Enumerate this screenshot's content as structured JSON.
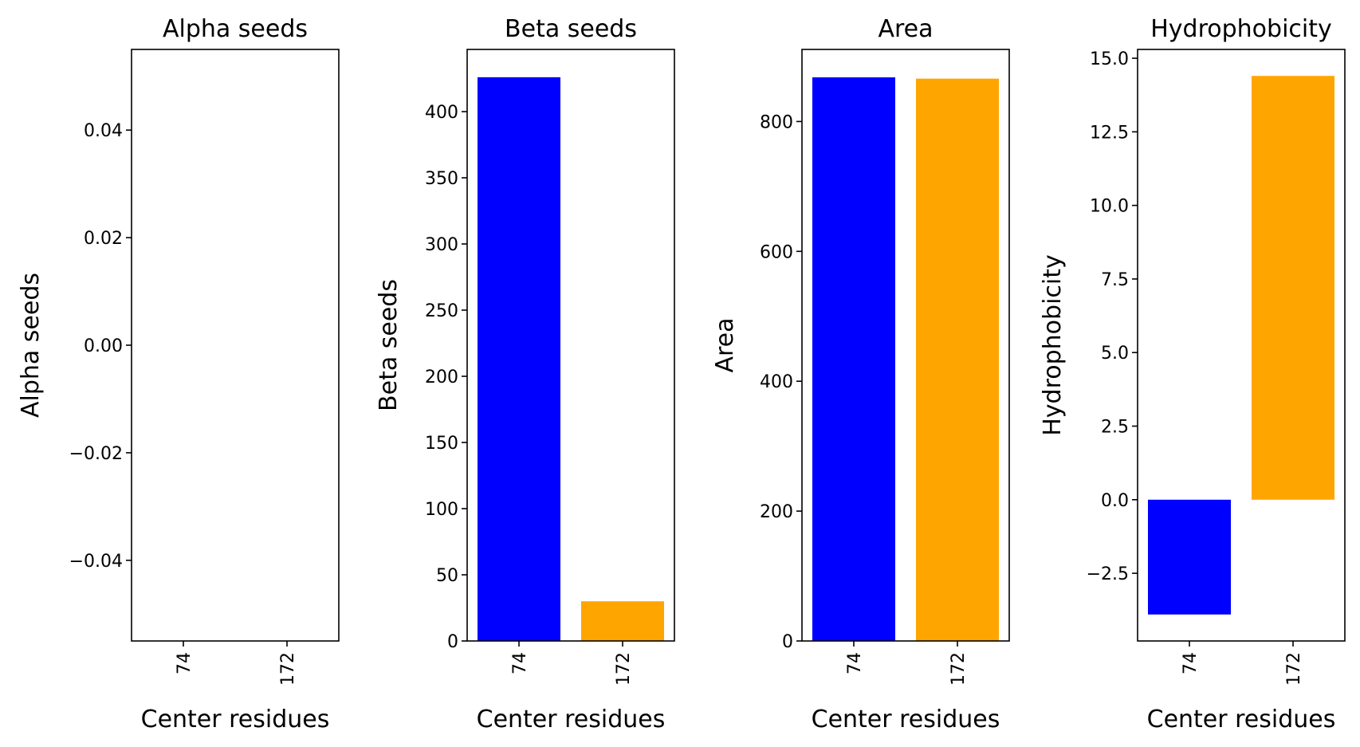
{
  "colors": {
    "series_74": "#0000ff",
    "series_172": "#ffa500"
  },
  "chart_data": [
    {
      "type": "bar",
      "title": "Alpha seeds",
      "xlabel": "Center residues",
      "ylabel": "Alpha seeds",
      "categories": [
        "74",
        "172"
      ],
      "values": [
        0,
        0
      ],
      "bar_colors": [
        "#0000ff",
        "#ffa500"
      ],
      "ylim": [
        -0.055,
        0.055
      ],
      "yticks": [
        -0.04,
        -0.02,
        0.0,
        0.02,
        0.04
      ],
      "ytick_labels": [
        "−0.04",
        "−0.02",
        "0.00",
        "0.02",
        "0.04"
      ]
    },
    {
      "type": "bar",
      "title": "Beta seeds",
      "xlabel": "Center residues",
      "ylabel": "Beta seeds",
      "categories": [
        "74",
        "172"
      ],
      "values": [
        426,
        30
      ],
      "bar_colors": [
        "#0000ff",
        "#ffa500"
      ],
      "ylim": [
        0,
        447
      ],
      "yticks": [
        0,
        50,
        100,
        150,
        200,
        250,
        300,
        350,
        400
      ],
      "ytick_labels": [
        "0",
        "50",
        "100",
        "150",
        "200",
        "250",
        "300",
        "350",
        "400"
      ]
    },
    {
      "type": "bar",
      "title": "Area",
      "xlabel": "Center residues",
      "ylabel": "Area",
      "categories": [
        "74",
        "172"
      ],
      "values": [
        868,
        866
      ],
      "bar_colors": [
        "#0000ff",
        "#ffa500"
      ],
      "ylim": [
        0,
        911
      ],
      "yticks": [
        0,
        200,
        400,
        600,
        800
      ],
      "ytick_labels": [
        "0",
        "200",
        "400",
        "600",
        "800"
      ]
    },
    {
      "type": "bar",
      "title": "Hydrophobicity",
      "xlabel": "Center residues",
      "ylabel": "Hydrophobicity",
      "categories": [
        "74",
        "172"
      ],
      "values": [
        -3.9,
        14.4
      ],
      "bar_colors": [
        "#0000ff",
        "#ffa500"
      ],
      "ylim": [
        -4.8,
        15.3
      ],
      "yticks": [
        -2.5,
        0.0,
        2.5,
        5.0,
        7.5,
        10.0,
        12.5,
        15.0
      ],
      "ytick_labels": [
        "−2.5",
        "0.0",
        "2.5",
        "5.0",
        "7.5",
        "10.0",
        "12.5",
        "15.0"
      ]
    }
  ]
}
